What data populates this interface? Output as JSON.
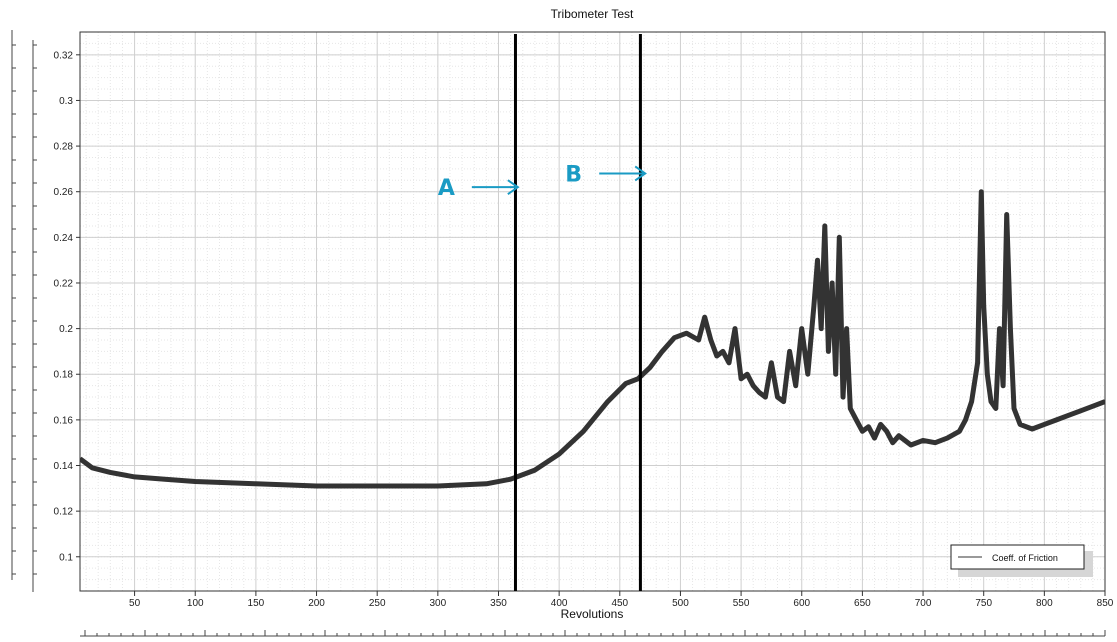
{
  "chart_data": {
    "type": "line",
    "title": "Tribometer Test",
    "xlabel": "Revolutions",
    "ylabel": "",
    "xlim": [
      5,
      850
    ],
    "ylim": [
      0.085,
      0.33
    ],
    "x_ticks": [
      50,
      100,
      150,
      200,
      250,
      300,
      350,
      400,
      450,
      500,
      550,
      600,
      650,
      700,
      750,
      800,
      850
    ],
    "y_ticks": [
      0.1,
      0.12,
      0.14,
      0.16,
      0.18,
      0.2,
      0.22,
      0.24,
      0.26,
      0.28,
      0.3,
      0.32
    ],
    "grid": true,
    "legend": {
      "position": "bottom-right",
      "entries": [
        "Coeff. of Friction"
      ]
    },
    "series": [
      {
        "name": "Coeff. of Friction",
        "color": "#333333",
        "x": [
          5,
          15,
          30,
          50,
          75,
          100,
          150,
          200,
          250,
          300,
          340,
          360,
          380,
          400,
          420,
          440,
          455,
          465,
          475,
          485,
          495,
          505,
          515,
          520,
          525,
          530,
          535,
          540,
          545,
          550,
          555,
          560,
          565,
          570,
          575,
          580,
          585,
          590,
          595,
          600,
          605,
          610,
          613,
          616,
          619,
          622,
          625,
          628,
          631,
          634,
          637,
          640,
          645,
          650,
          655,
          660,
          665,
          670,
          675,
          680,
          690,
          700,
          710,
          720,
          730,
          735,
          740,
          745,
          748,
          750,
          753,
          756,
          760,
          763,
          766,
          769,
          772,
          775,
          780,
          790,
          800,
          810,
          820,
          830,
          840,
          850
        ],
        "y": [
          0.143,
          0.139,
          0.137,
          0.135,
          0.134,
          0.133,
          0.132,
          0.131,
          0.131,
          0.131,
          0.132,
          0.134,
          0.138,
          0.145,
          0.155,
          0.168,
          0.176,
          0.178,
          0.183,
          0.19,
          0.196,
          0.198,
          0.195,
          0.205,
          0.195,
          0.188,
          0.19,
          0.185,
          0.2,
          0.178,
          0.18,
          0.175,
          0.172,
          0.17,
          0.185,
          0.17,
          0.168,
          0.19,
          0.175,
          0.2,
          0.18,
          0.21,
          0.23,
          0.2,
          0.245,
          0.19,
          0.22,
          0.18,
          0.24,
          0.17,
          0.2,
          0.165,
          0.16,
          0.155,
          0.157,
          0.152,
          0.158,
          0.155,
          0.15,
          0.153,
          0.149,
          0.151,
          0.15,
          0.152,
          0.155,
          0.16,
          0.168,
          0.185,
          0.26,
          0.21,
          0.18,
          0.168,
          0.165,
          0.2,
          0.175,
          0.25,
          0.2,
          0.165,
          0.158,
          0.156,
          0.158,
          0.16,
          0.162,
          0.164,
          0.166,
          0.168
        ]
      }
    ],
    "vertical_markers": [
      {
        "label": "A",
        "x": 364
      },
      {
        "label": "B",
        "x": 467
      }
    ],
    "annotations": [
      {
        "text": "A",
        "color": "#1a9bc4",
        "x": 300,
        "y": 0.262
      },
      {
        "text": "B",
        "color": "#1a9bc4",
        "x": 405,
        "y": 0.268
      }
    ]
  }
}
